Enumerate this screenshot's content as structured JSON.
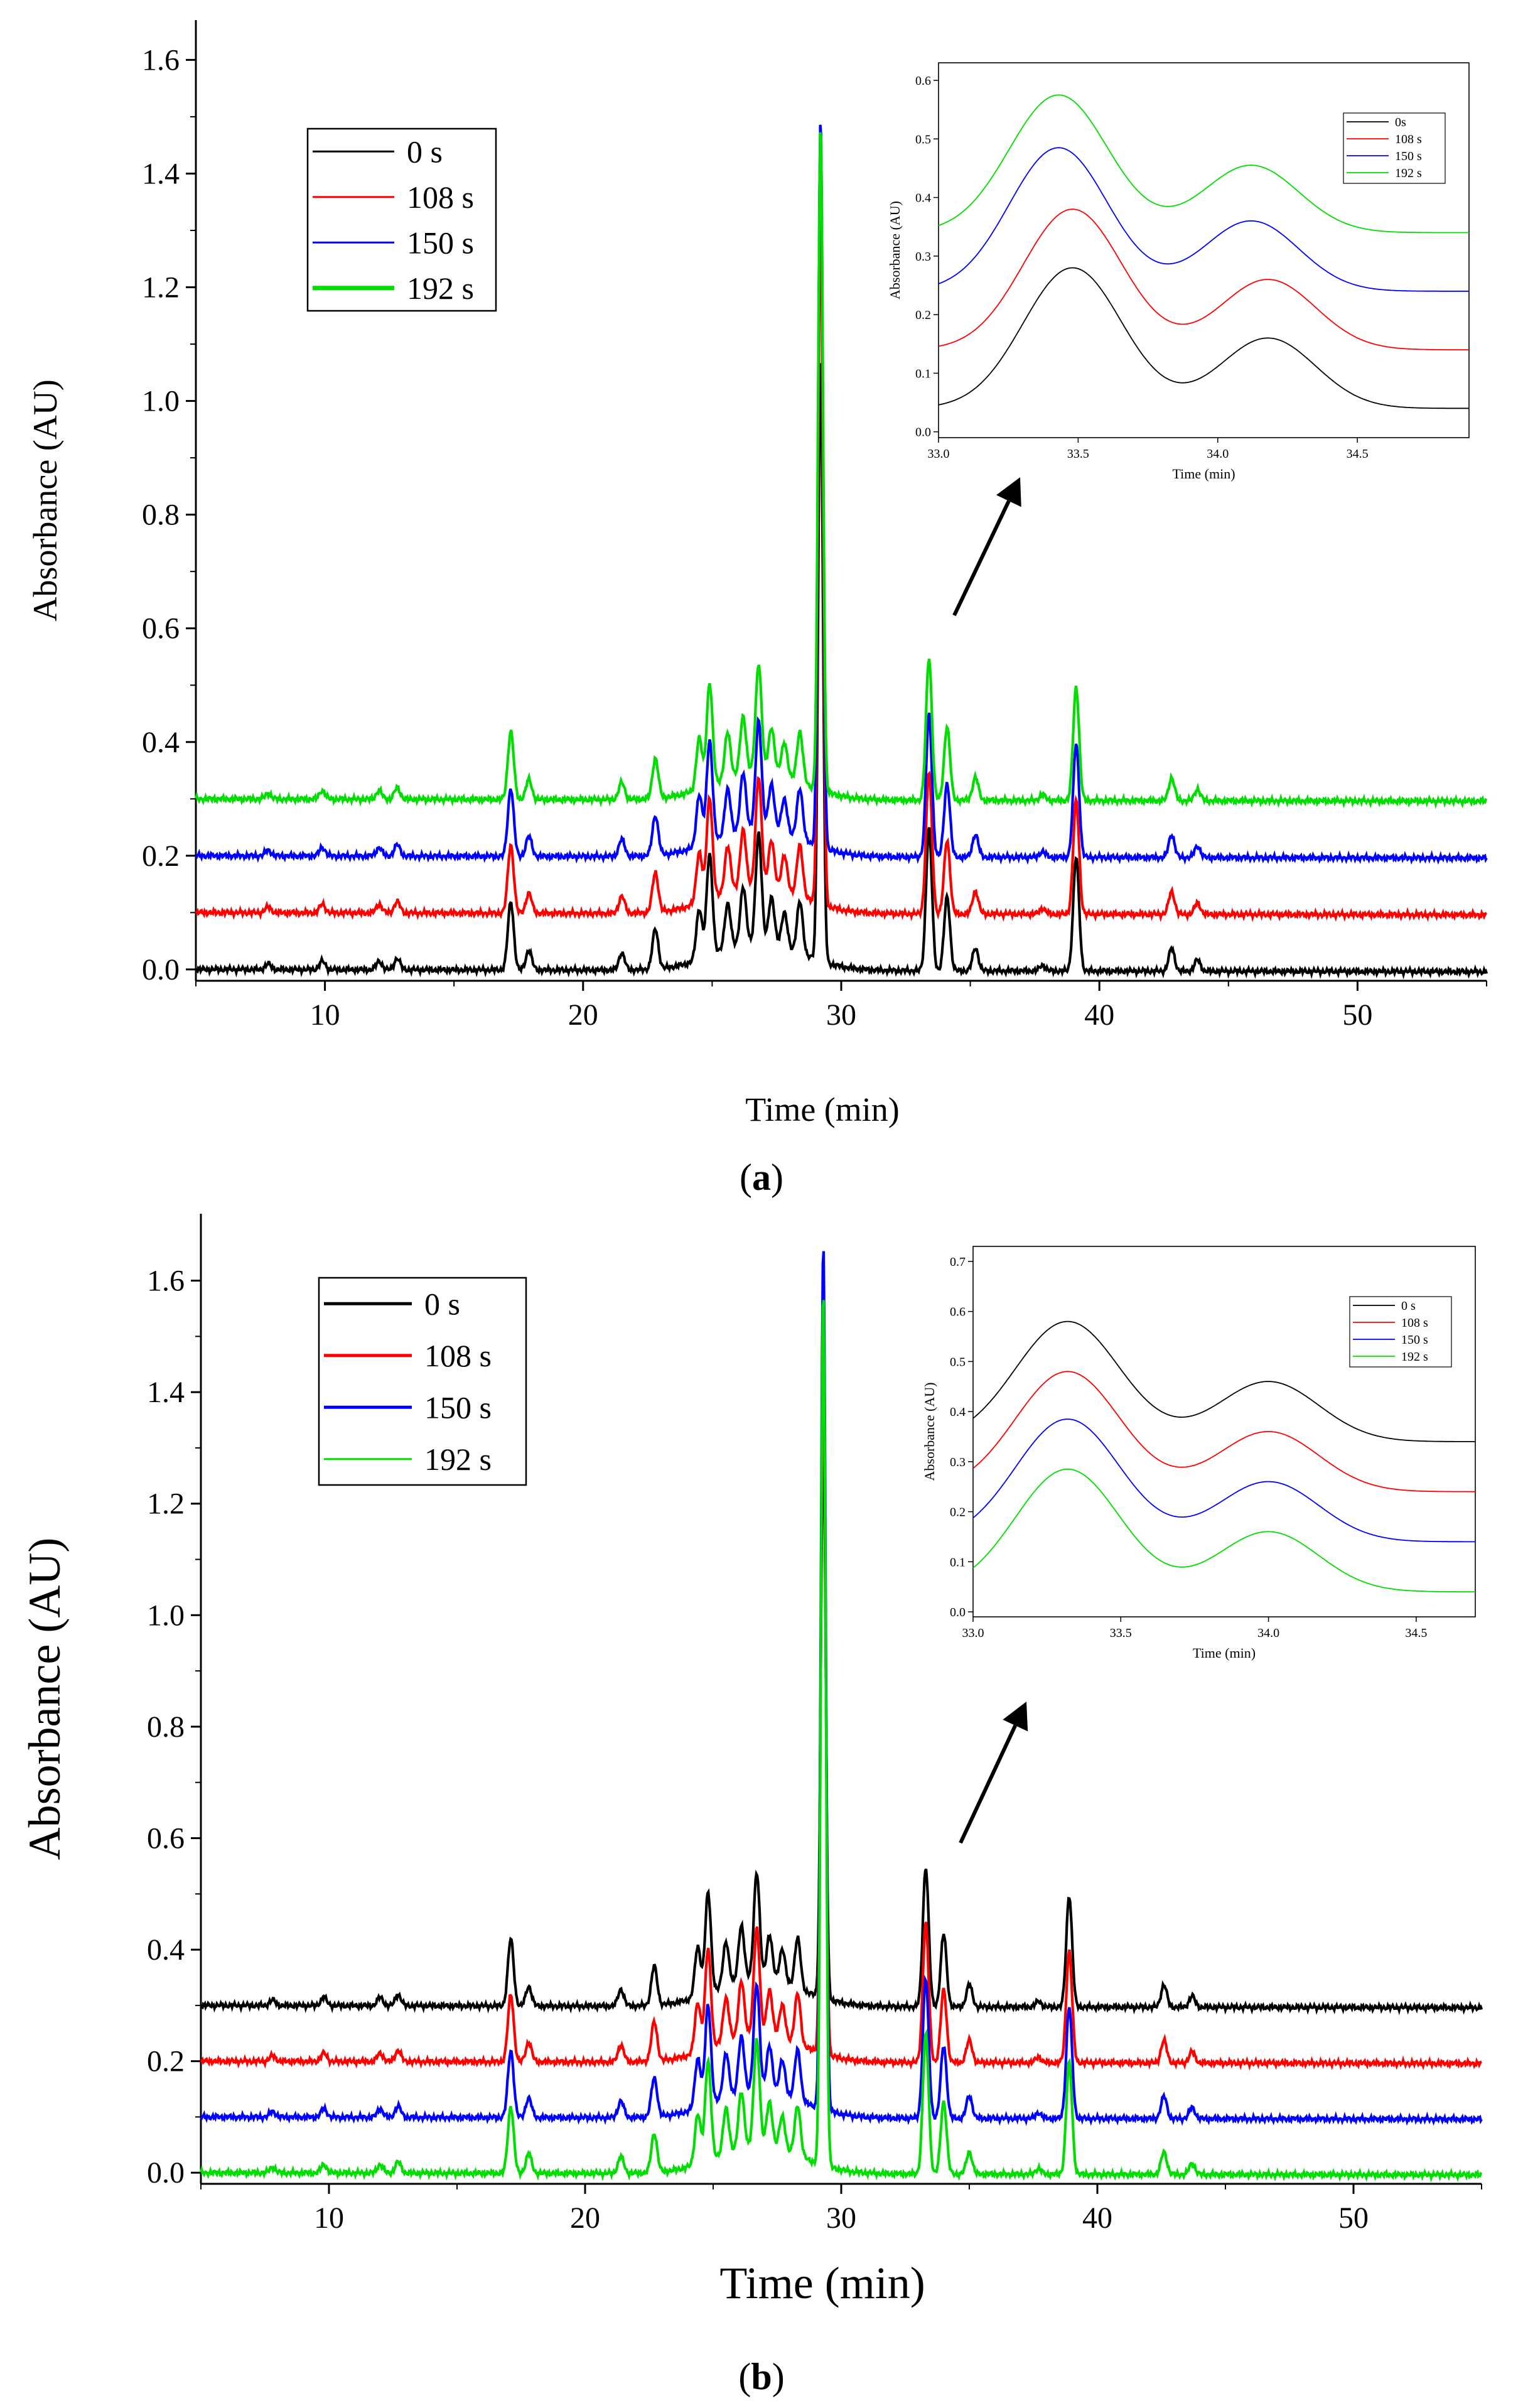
{
  "colors": {
    "0s": "#000000",
    "108s": "#ff0000",
    "150s": "#0000ff",
    "192s": "#00dd00"
  },
  "chart_data": [
    {
      "panel": "a",
      "caption_label": "a",
      "type": "line",
      "xlabel": "Time (min)",
      "ylabel": "Absorbance (AU)",
      "xlim": [
        5,
        55
      ],
      "ylim": [
        -0.02,
        1.67
      ],
      "xticks": [
        "10",
        "20",
        "30",
        "40",
        "50"
      ],
      "yticks": [
        "0.0",
        "0.2",
        "0.4",
        "0.6",
        "0.8",
        "1.0",
        "1.2",
        "1.4",
        "1.6"
      ],
      "legend_position": "top-left",
      "series": [
        {
          "name": "0 s",
          "color_key": "0s",
          "offset": 0.0,
          "main_peak": 1.06
        },
        {
          "name": "108 s",
          "color_key": "108s",
          "offset": 0.1,
          "main_peak": 1.33
        },
        {
          "name": "150 s",
          "color_key": "150s",
          "offset": 0.2,
          "main_peak": 1.48
        },
        {
          "name": "192 s",
          "color_key": "192s",
          "offset": 0.3,
          "main_peak": 1.47
        }
      ],
      "peaks": [
        {
          "x": 7.8,
          "h": 0.01
        },
        {
          "x": 9.9,
          "h": 0.015
        },
        {
          "x": 12.1,
          "h": 0.015
        },
        {
          "x": 12.8,
          "h": 0.02
        },
        {
          "x": 17.2,
          "h": 0.12
        },
        {
          "x": 17.9,
          "h": 0.035
        },
        {
          "x": 21.5,
          "h": 0.03
        },
        {
          "x": 22.8,
          "h": 0.07
        },
        {
          "x": 24.5,
          "h": 0.09
        },
        {
          "x": 24.9,
          "h": 0.18
        },
        {
          "x": 25.6,
          "h": 0.08
        },
        {
          "x": 26.2,
          "h": 0.1
        },
        {
          "x": 26.8,
          "h": 0.19
        },
        {
          "x": 27.3,
          "h": 0.08
        },
        {
          "x": 27.8,
          "h": 0.06
        },
        {
          "x": 28.4,
          "h": 0.09
        },
        {
          "x": 33.4,
          "h": 0.25
        },
        {
          "x": 34.1,
          "h": 0.13
        },
        {
          "x": 35.2,
          "h": 0.04
        },
        {
          "x": 37.8,
          "h": 0.01
        },
        {
          "x": 39.1,
          "h": 0.2
        },
        {
          "x": 42.8,
          "h": 0.04
        },
        {
          "x": 43.8,
          "h": 0.02
        }
      ],
      "inset": {
        "xlabel": "Time (min)",
        "ylabel": "Absorbance (AU)",
        "xlim": [
          33.0,
          34.9
        ],
        "ylim": [
          -0.01,
          0.63
        ],
        "xticks": [
          "33.0",
          "33.5",
          "34.0",
          "34.5"
        ],
        "yticks": [
          "0.0",
          "0.1",
          "0.2",
          "0.3",
          "0.4",
          "0.5",
          "0.6"
        ],
        "legend": [
          "0s",
          "108 s",
          "150 s",
          "192 s"
        ],
        "series": [
          {
            "color_key": "0s",
            "base": 0.04,
            "p1x": 33.48,
            "p1h": 0.24,
            "p2x": 34.18,
            "p2h": 0.12
          },
          {
            "color_key": "108s",
            "base": 0.14,
            "p1x": 33.48,
            "p1h": 0.24,
            "p2x": 34.18,
            "p2h": 0.12
          },
          {
            "color_key": "150s",
            "base": 0.24,
            "p1x": 33.43,
            "p1h": 0.245,
            "p2x": 34.12,
            "p2h": 0.12
          },
          {
            "color_key": "192s",
            "base": 0.34,
            "p1x": 33.43,
            "p1h": 0.235,
            "p2x": 34.12,
            "p2h": 0.115
          }
        ]
      }
    },
    {
      "panel": "b",
      "caption_label": "b",
      "type": "line",
      "xlabel": "Time (min)",
      "ylabel": "Absorbance (AU)",
      "xlim": [
        5,
        55
      ],
      "ylim": [
        -0.02,
        1.72
      ],
      "xticks": [
        "10",
        "20",
        "30",
        "40",
        "50"
      ],
      "yticks": [
        "0.0",
        "0.2",
        "0.4",
        "0.6",
        "0.8",
        "1.0",
        "1.2",
        "1.4",
        "1.6"
      ],
      "legend_position": "top-left",
      "series": [
        {
          "name": "0 s",
          "color_key": "0s",
          "offset": 0.3,
          "main_peak": 1.33
        },
        {
          "name": "108 s",
          "color_key": "108s",
          "offset": 0.2,
          "main_peak": 1.45
        },
        {
          "name": "150 s",
          "color_key": "150s",
          "offset": 0.1,
          "main_peak": 1.65
        },
        {
          "name": "192 s",
          "color_key": "192s",
          "offset": 0.0,
          "main_peak": 1.57
        }
      ],
      "peaks": [
        {
          "x": 7.8,
          "h": 0.01
        },
        {
          "x": 9.8,
          "h": 0.015
        },
        {
          "x": 12.0,
          "h": 0.015
        },
        {
          "x": 12.7,
          "h": 0.02
        },
        {
          "x": 17.1,
          "h": 0.12
        },
        {
          "x": 17.8,
          "h": 0.035
        },
        {
          "x": 21.4,
          "h": 0.03
        },
        {
          "x": 22.7,
          "h": 0.07
        },
        {
          "x": 24.4,
          "h": 0.09
        },
        {
          "x": 24.8,
          "h": 0.18
        },
        {
          "x": 25.5,
          "h": 0.08
        },
        {
          "x": 26.1,
          "h": 0.1
        },
        {
          "x": 26.7,
          "h": 0.19
        },
        {
          "x": 27.2,
          "h": 0.08
        },
        {
          "x": 27.7,
          "h": 0.06
        },
        {
          "x": 28.3,
          "h": 0.09
        },
        {
          "x": 33.3,
          "h": 0.25
        },
        {
          "x": 34.0,
          "h": 0.13
        },
        {
          "x": 35.0,
          "h": 0.04
        },
        {
          "x": 37.7,
          "h": 0.01
        },
        {
          "x": 38.9,
          "h": 0.2
        },
        {
          "x": 42.6,
          "h": 0.04
        },
        {
          "x": 43.7,
          "h": 0.02
        }
      ],
      "inset": {
        "xlabel": "Time (min)",
        "ylabel": "Absorbance (AU)",
        "xlim": [
          33.0,
          34.7
        ],
        "ylim": [
          -0.01,
          0.73
        ],
        "xticks": [
          "33.0",
          "33.5",
          "34.0",
          "34.5"
        ],
        "yticks": [
          "0.0",
          "0.1",
          "0.2",
          "0.3",
          "0.4",
          "0.5",
          "0.6",
          "0.7"
        ],
        "legend": [
          "0 s",
          "108 s",
          "150 s",
          "192 s"
        ],
        "series": [
          {
            "color_key": "0s",
            "base": 0.34,
            "p1x": 33.32,
            "p1h": 0.24,
            "p2x": 34.0,
            "p2h": 0.12
          },
          {
            "color_key": "108s",
            "base": 0.24,
            "p1x": 33.32,
            "p1h": 0.24,
            "p2x": 34.0,
            "p2h": 0.12
          },
          {
            "color_key": "150s",
            "base": 0.14,
            "p1x": 33.32,
            "p1h": 0.245,
            "p2x": 34.0,
            "p2h": 0.12
          },
          {
            "color_key": "192s",
            "base": 0.04,
            "p1x": 33.32,
            "p1h": 0.245,
            "p2x": 34.0,
            "p2h": 0.12
          }
        ]
      }
    }
  ]
}
